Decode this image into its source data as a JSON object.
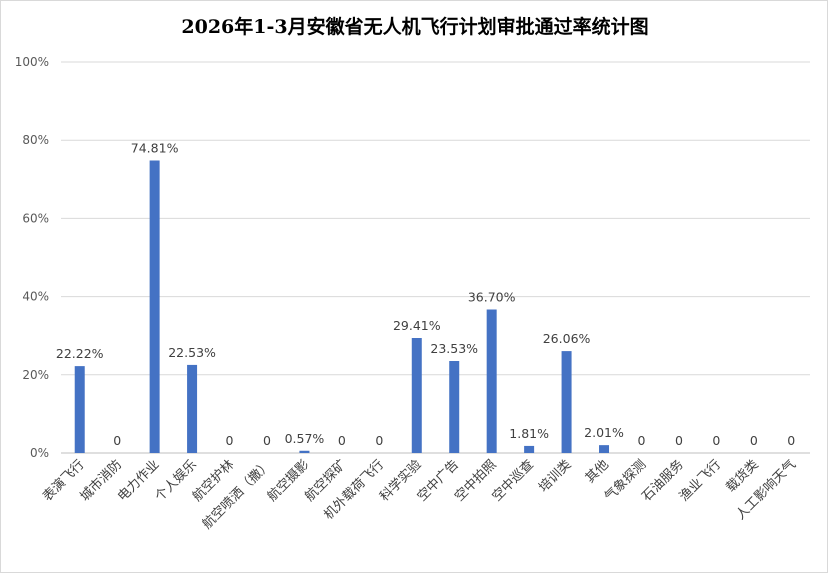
{
  "chart_data": {
    "type": "bar",
    "title": "2026年1-3月安徽省无人机飞行计划审批通过率统计图",
    "xlabel": "",
    "ylabel": "",
    "ylim": [
      0,
      100
    ],
    "yticks": [
      "0%",
      "20%",
      "40%",
      "60%",
      "80%",
      "100%"
    ],
    "grid": true,
    "legend": "none",
    "bar_color": "#4472C4",
    "categories": [
      "表演飞行",
      "城市消防",
      "电力作业",
      "个人娱乐",
      "航空护林",
      "航空喷洒（撒）",
      "航空摄影",
      "航空探矿",
      "机外载荷飞行",
      "科学实验",
      "空中广告",
      "空中拍照",
      "空中巡查",
      "培训类",
      "其他",
      "气象探测",
      "石油服务",
      "渔业飞行",
      "载货类",
      "人工影响天气"
    ],
    "values": [
      22.22,
      0,
      74.81,
      22.53,
      0,
      0,
      0.57,
      0,
      0,
      29.41,
      23.53,
      36.7,
      1.81,
      26.06,
      2.01,
      0,
      0,
      0,
      0,
      0
    ],
    "data_labels": [
      "22.22%",
      "0",
      "74.81%",
      "22.53%",
      "0",
      "0",
      "0.57%",
      "0",
      "0",
      "29.41%",
      "23.53%",
      "36.70%",
      "1.81%",
      "26.06%",
      "2.01%",
      "0",
      "0",
      "0",
      "0",
      "0"
    ]
  }
}
